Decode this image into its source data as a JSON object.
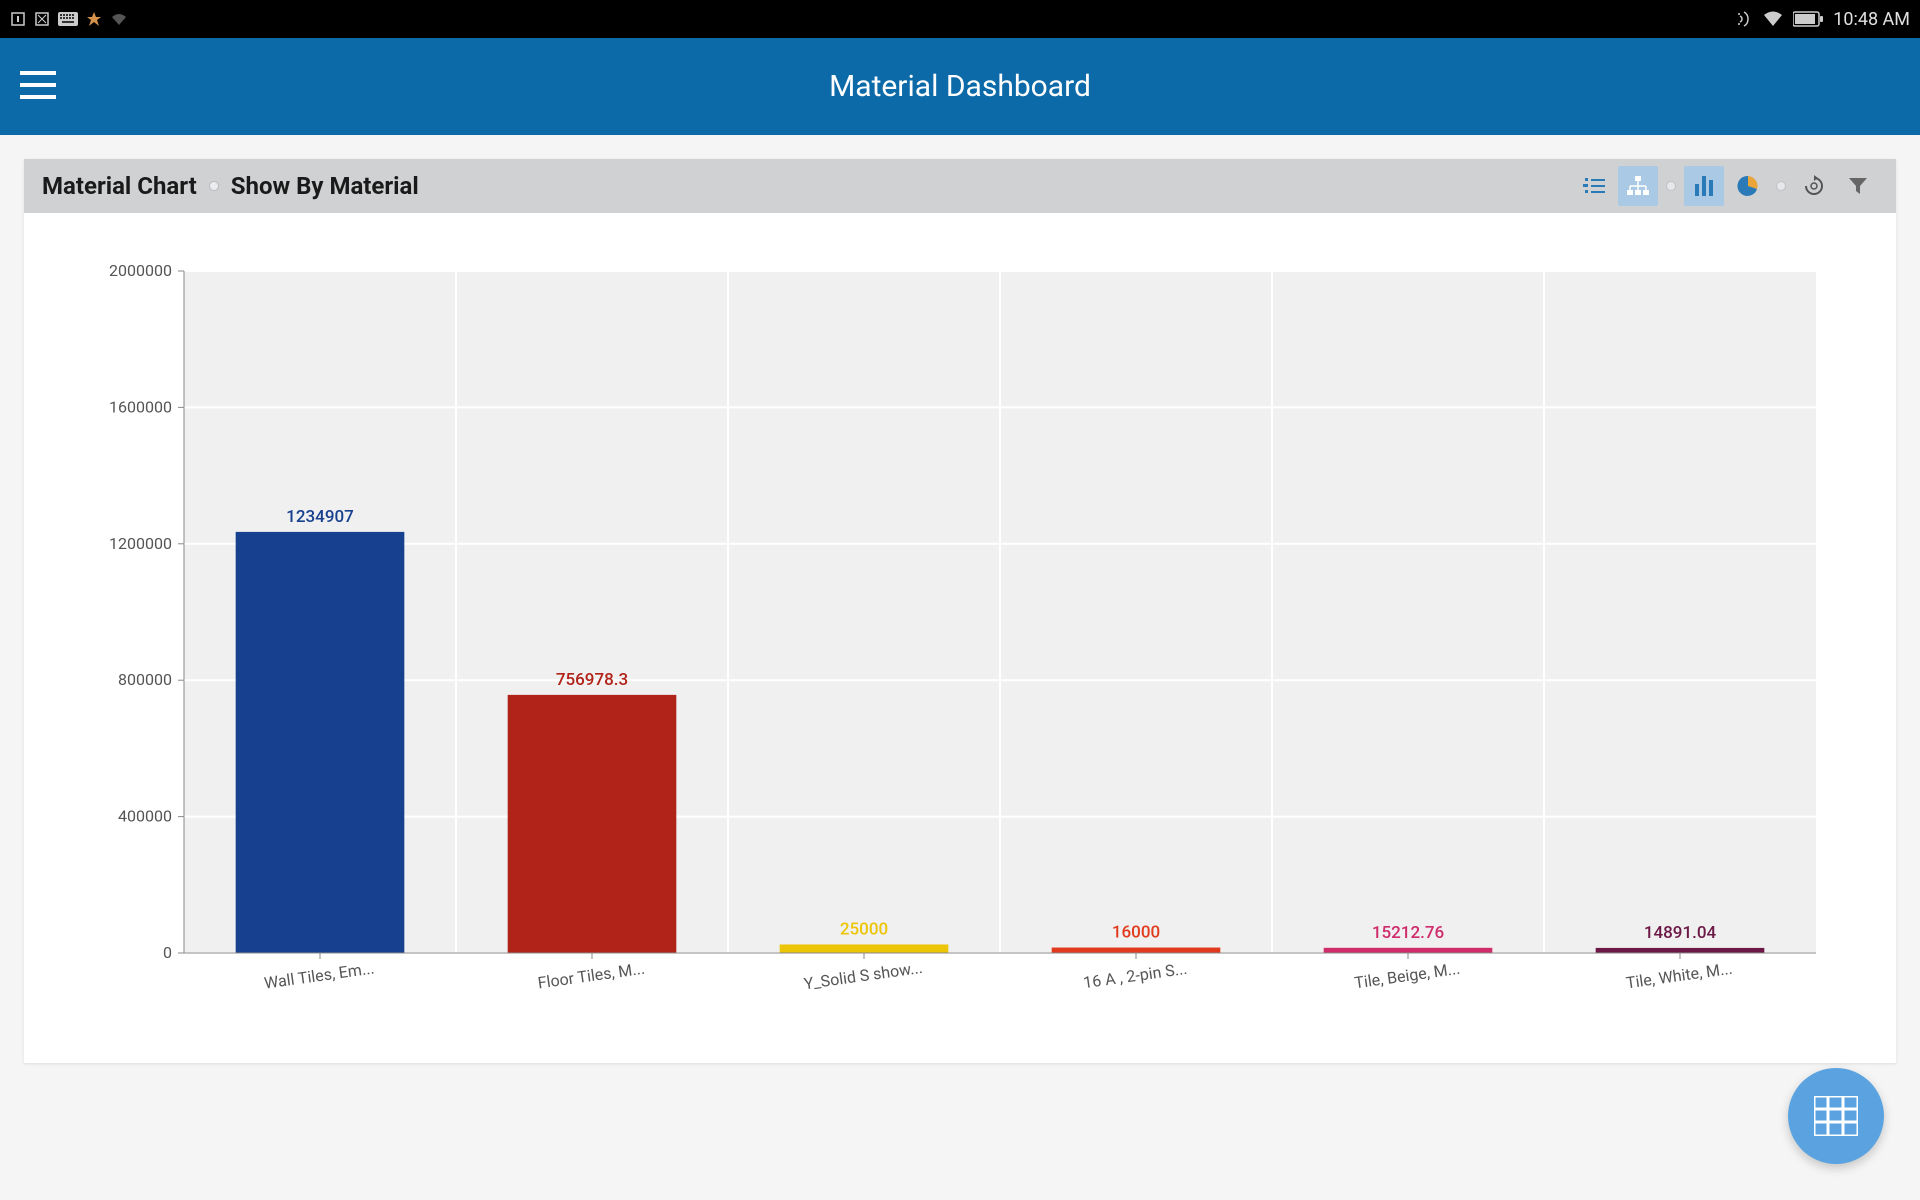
{
  "status_bar": {
    "time": "10:48 AM"
  },
  "header": {
    "title": "Material Dashboard"
  },
  "card": {
    "title_primary": "Material Chart",
    "title_secondary": "Show By Material"
  },
  "chart": {
    "type": "bar",
    "ylim": [
      0,
      2000000
    ],
    "ytick_step": 400000,
    "ytick_labels": [
      "0",
      "400000",
      "800000",
      "1200000",
      "1600000",
      "2000000"
    ],
    "plot_bg": "#f0f0f0",
    "grid_color": "#ffffff",
    "axis_color": "#888888",
    "label_color": "#555555",
    "categories": [
      "Wall Tiles, Em...",
      "Floor Tiles, M...",
      "Y_Solid S show...",
      "16 A , 2-pin S...",
      "Tile, Beige, M...",
      "Tile, White, M..."
    ],
    "values": [
      1234907,
      756978.3,
      25000,
      16000,
      15212.76,
      14891.04
    ],
    "value_labels": [
      "1234907",
      "756978.3",
      "25000",
      "16000",
      "15212.76",
      "14891.04"
    ],
    "bar_colors": [
      "#17418f",
      "#b12218",
      "#ecc507",
      "#e13a1c",
      "#cf2c6c",
      "#6c1846"
    ],
    "label_colors": [
      "#17418f",
      "#b12218",
      "#ecc507",
      "#e13a1c",
      "#cf2c6c",
      "#6c1846"
    ],
    "bar_width_ratio": 0.62,
    "label_fontsize": 17,
    "tick_fontsize": 16
  }
}
